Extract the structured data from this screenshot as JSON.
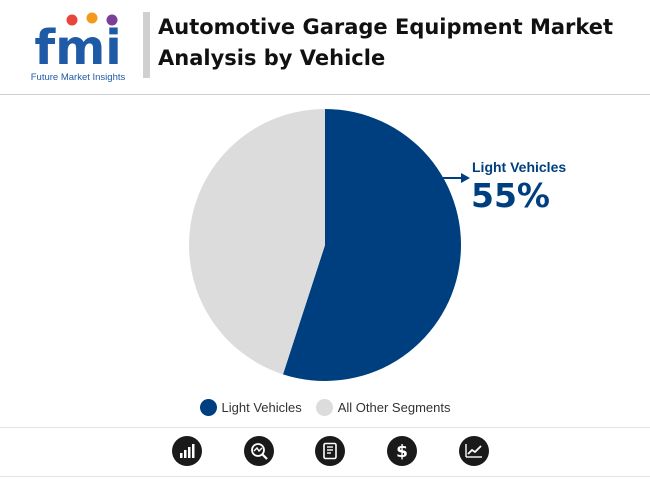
{
  "header": {
    "title_line1": "Automotive Garage Equipment Market",
    "title_line2": "Analysis by Vehicle"
  },
  "logo": {
    "wordmark": "fmi",
    "tagline": "Future Market Insights"
  },
  "chart_data": {
    "type": "pie",
    "title": "",
    "slices": [
      {
        "label": "Light Vehicles",
        "value": 55,
        "color": "#003f7f"
      },
      {
        "label": "All Other Segments",
        "value": 45,
        "color": "#dcdcdc"
      }
    ],
    "callout": {
      "label": "Light Vehicles",
      "value_text": "55%"
    },
    "legend_position": "bottom"
  },
  "footer_icons": [
    "bar-chart-icon",
    "magnifier-chart-icon",
    "report-document-icon",
    "dollar-icon",
    "trend-chart-icon"
  ],
  "colors": {
    "primary": "#003f7f",
    "secondary": "#dcdcdc",
    "logo_blue": "#1f5aa6",
    "icon_bg": "#1a1a1a"
  }
}
